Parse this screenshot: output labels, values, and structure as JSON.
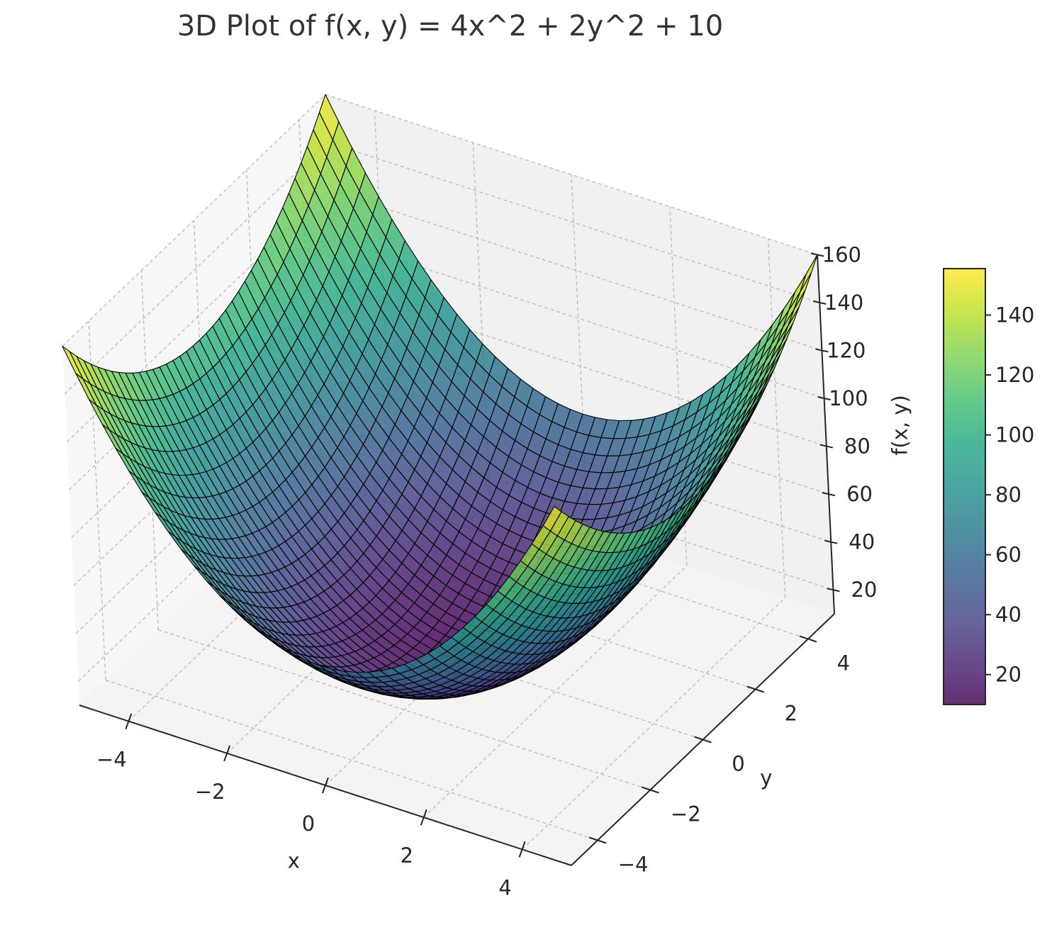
{
  "chart_data": {
    "type": "surface3d",
    "title": "3D Plot of f(x, y) = 4x^2 + 2y^2 + 10",
    "function": "f(x, y) = 4x^2 + 2y^2 + 10",
    "xlabel": "x",
    "ylabel": "y",
    "zlabel": "f(x, y)",
    "xlim": [
      -5,
      5
    ],
    "ylim": [
      -5,
      5
    ],
    "zlim": [
      10,
      160
    ],
    "x_ticks": [
      "−4",
      "−2",
      "0",
      "2",
      "4"
    ],
    "x_tick_values": [
      -4,
      -2,
      0,
      2,
      4
    ],
    "y_ticks": [
      "−4",
      "−2",
      "0",
      "2",
      "4"
    ],
    "y_tick_values": [
      -4,
      -2,
      0,
      2,
      4
    ],
    "z_ticks": [
      "20",
      "40",
      "60",
      "80",
      "100",
      "120",
      "140",
      "160"
    ],
    "z_tick_values": [
      20,
      40,
      60,
      80,
      100,
      120,
      140,
      160
    ],
    "colorbar": {
      "ticks": [
        "20",
        "40",
        "60",
        "80",
        "100",
        "120",
        "140"
      ],
      "tick_values": [
        20,
        40,
        60,
        80,
        100,
        120,
        140
      ],
      "range": [
        10,
        160
      ]
    },
    "colormap": "viridis",
    "grid": true,
    "surface": {
      "x": [
        -5,
        -4.75,
        -4.5,
        -4.25,
        -4,
        -3.75,
        -3.5,
        -3.25,
        -3,
        -2.75,
        -2.5,
        -2.25,
        -2,
        -1.75,
        -1.5,
        -1.25,
        -1,
        -0.75,
        -0.5,
        -0.25,
        0,
        0.25,
        0.5,
        0.75,
        1,
        1.25,
        1.5,
        1.75,
        2,
        2.25,
        2.5,
        2.75,
        3,
        3.25,
        3.5,
        3.75,
        4,
        4.25,
        4.5,
        4.75,
        5
      ],
      "y": [
        -5,
        -4.75,
        -4.5,
        -4.25,
        -4,
        -3.75,
        -3.5,
        -3.25,
        -3,
        -2.75,
        -2.5,
        -2.25,
        -2,
        -1.75,
        -1.5,
        -1.25,
        -1,
        -0.75,
        -0.5,
        -0.25,
        0,
        0.25,
        0.5,
        0.75,
        1,
        1.25,
        1.5,
        1.75,
        2,
        2.25,
        2.5,
        2.75,
        3,
        3.25,
        3.5,
        3.75,
        4,
        4.25,
        4.5,
        4.75,
        5
      ],
      "z_formula": "4x^2 + 2y^2 + 10",
      "min": 10,
      "max": 160
    }
  }
}
